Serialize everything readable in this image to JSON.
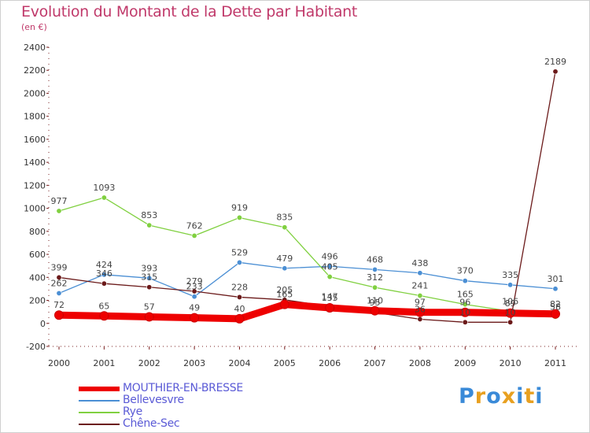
{
  "chart_data": {
    "type": "line",
    "title": "Evolution du Montant de la Dette par Habitant",
    "subtitle": "(en €)",
    "xlabel": "",
    "ylabel": "",
    "x": [
      "2000",
      "2001",
      "2002",
      "2003",
      "2004",
      "2005",
      "2006",
      "2007",
      "2008",
      "2009",
      "2010",
      "2011"
    ],
    "ylim": [
      -200,
      2400
    ],
    "yticks": [
      -200,
      0,
      200,
      400,
      600,
      800,
      1000,
      1200,
      1400,
      1600,
      1800,
      2000,
      2200,
      2400
    ],
    "grid": false,
    "legend_position": "bottom-left",
    "series": [
      {
        "name": "MOUTHIER-EN-BRESSE",
        "color": "#ee0000",
        "values": [
          72,
          65,
          57,
          49,
          40,
          165,
          135,
          110,
          97,
          96,
          89,
          82
        ],
        "labels": [
          "72",
          "65",
          "57",
          "49",
          "40",
          "165",
          "135",
          "110",
          "97",
          "96",
          "89",
          "82"
        ]
      },
      {
        "name": "Bellevesvre",
        "color": "#4b8fd4",
        "values": [
          262,
          424,
          393,
          233,
          529,
          479,
          496,
          468,
          438,
          370,
          335,
          301
        ],
        "labels": [
          "262",
          "424",
          "393",
          "233",
          "529",
          "479",
          "496",
          "468",
          "438",
          "370",
          "335",
          "301"
        ]
      },
      {
        "name": "Rye",
        "color": "#80d040",
        "values": [
          977,
          1093,
          853,
          762,
          919,
          835,
          405,
          312,
          241,
          165,
          106,
          58
        ],
        "labels": [
          "977",
          "1093",
          "853",
          "762",
          "919",
          "835",
          "405",
          "312",
          "241",
          "165",
          "106",
          "58"
        ]
      },
      {
        "name": "Chêne-Sec",
        "color": "#6b1a1a",
        "values": [
          399,
          346,
          315,
          279,
          228,
          205,
          147,
          95,
          36,
          10,
          10,
          2189
        ],
        "labels": [
          "399",
          "346",
          "315",
          "279",
          "228",
          "205",
          "147",
          "95",
          "36",
          "10",
          "10",
          "2189"
        ]
      }
    ]
  },
  "logo": {
    "letters": [
      "P",
      "r",
      "o",
      "x",
      "i",
      "t",
      "i"
    ],
    "colors": [
      "#3a8ad8",
      "#e8a020",
      "#3a8ad8",
      "#e8a020",
      "#3a8ad8",
      "#e8a020",
      "#3a8ad8"
    ]
  }
}
